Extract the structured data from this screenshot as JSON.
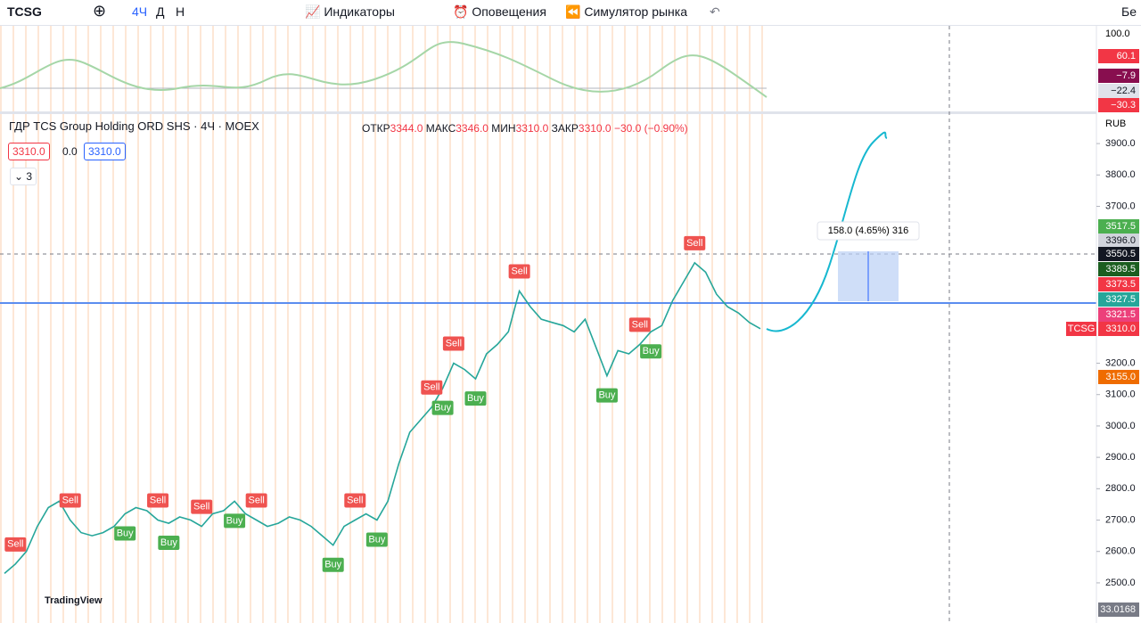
{
  "toolbar": {
    "symbol": "TCSG",
    "intervals": [
      "4Ч",
      "Д",
      "Н"
    ],
    "indicators": "Индикаторы",
    "alerts": "Оповещения",
    "replay": "Симулятор рынка",
    "right": "Бе"
  },
  "legend": {
    "title": "ГДР TCS Group Holding ORD SHS · 4Ч · MOEX",
    "ohlc": [
      [
        "ОТКР",
        "3344.0"
      ],
      [
        "МАКС",
        "3346.0"
      ],
      [
        "МИН",
        "3310.0"
      ],
      [
        "ЗАКР",
        "3310.0"
      ]
    ],
    "change": "−30.0 (−0.90%)",
    "bid": "3310.0",
    "spread": "0.0",
    "ask": "3310.0",
    "count": "3"
  },
  "currency": "RUB",
  "measure": "158.0 (4.65%) 316",
  "symbol_tag": "TCSG",
  "logo": "TradingView",
  "oscillator": {
    "ticks": [
      "100.0"
    ],
    "badges": [
      {
        "text": "60.1",
        "color": "#f23645"
      },
      {
        "text": "−7.9",
        "color": "#880e4f"
      },
      {
        "text": "−22.4",
        "color": "#e0e3eb"
      },
      {
        "text": "−30.3",
        "color": "#f23645"
      }
    ]
  },
  "price_badges": [
    {
      "text": "3517.5",
      "color": "#4caf50"
    },
    {
      "text": "3396.0",
      "color": "#d1d4dc"
    },
    {
      "text": "3550.5",
      "color": "#131722"
    },
    {
      "text": "3389.5",
      "color": "#1b5e20"
    },
    {
      "text": "3373.5",
      "color": "#f23645"
    },
    {
      "text": "3327.5",
      "color": "#26a69a"
    },
    {
      "text": "3321.5",
      "color": "#ec407a"
    },
    {
      "text": "3310.0",
      "color": "#f23645"
    },
    {
      "text": "3155.0",
      "color": "#ef6c00"
    },
    {
      "text": "33.0168",
      "color": "#787b86"
    }
  ],
  "chart_data": {
    "type": "line",
    "color": "#26a69a",
    "ylim": [
      2372,
      3994
    ],
    "yticks": [
      {
        "value": 3900,
        "label": "3900.0"
      },
      {
        "value": 3800,
        "label": "3800.0"
      },
      {
        "value": 3700,
        "label": "3700.0"
      },
      {
        "value": 3200,
        "label": "3200.0"
      },
      {
        "value": 3100,
        "label": "3100.0"
      },
      {
        "value": 3000,
        "label": "3000.0"
      },
      {
        "value": 2900,
        "label": "2900.0"
      },
      {
        "value": 2800,
        "label": "2800.0"
      },
      {
        "value": 2700,
        "label": "2700.0"
      },
      {
        "value": 2600,
        "label": "2600.0"
      },
      {
        "value": 2500,
        "label": "2500.0"
      }
    ],
    "values": [
      2530,
      2560,
      2600,
      2680,
      2740,
      2760,
      2700,
      2660,
      2650,
      2660,
      2680,
      2720,
      2740,
      2730,
      2700,
      2690,
      2710,
      2700,
      2680,
      2720,
      2730,
      2760,
      2720,
      2700,
      2680,
      2690,
      2710,
      2700,
      2680,
      2650,
      2620,
      2680,
      2700,
      2720,
      2700,
      2760,
      2880,
      2980,
      3020,
      3060,
      3120,
      3200,
      3180,
      3150,
      3230,
      3260,
      3300,
      3430,
      3380,
      3340,
      3330,
      3320,
      3300,
      3340,
      3250,
      3160,
      3240,
      3230,
      3260,
      3300,
      3320,
      3400,
      3460,
      3520,
      3490,
      3420,
      3380,
      3360,
      3330,
      3310
    ],
    "signals": [
      {
        "index": 1,
        "label": "Sell"
      },
      {
        "index": 6,
        "label": "Sell"
      },
      {
        "index": 11,
        "label": "Buy"
      },
      {
        "index": 14,
        "label": "Sell"
      },
      {
        "index": 15,
        "label": "Buy"
      },
      {
        "index": 18,
        "label": "Sell"
      },
      {
        "index": 21,
        "label": "Buy"
      },
      {
        "index": 23,
        "label": "Sell"
      },
      {
        "index": 30,
        "label": "Buy"
      },
      {
        "index": 32,
        "label": "Sell"
      },
      {
        "index": 34,
        "label": "Buy"
      },
      {
        "index": 39,
        "label": "Sell"
      },
      {
        "index": 40,
        "label": "Buy"
      },
      {
        "index": 41,
        "label": "Sell"
      },
      {
        "index": 43,
        "label": "Buy"
      },
      {
        "index": 47,
        "label": "Sell"
      },
      {
        "index": 55,
        "label": "Buy"
      },
      {
        "index": 58,
        "label": "Sell"
      },
      {
        "index": 59,
        "label": "Buy"
      },
      {
        "index": 63,
        "label": "Sell"
      }
    ]
  }
}
